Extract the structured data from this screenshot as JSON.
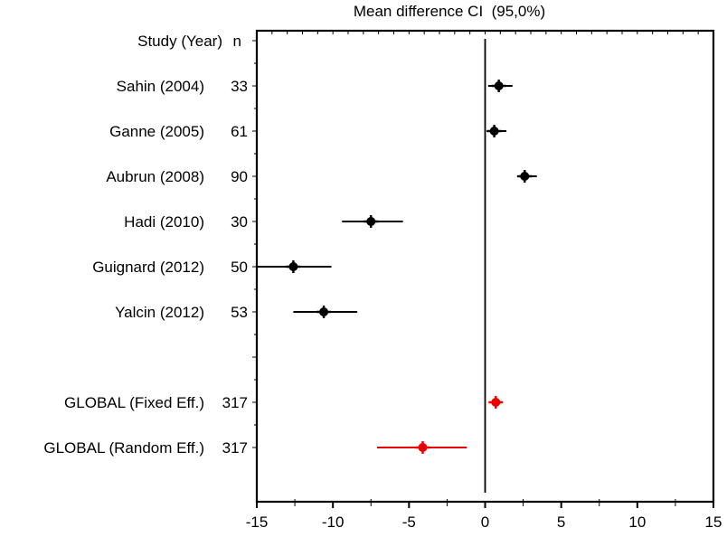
{
  "chart_data": {
    "type": "scatter",
    "subtype": "forest-plot",
    "title": "Mean difference CI  (95,0%)",
    "column_headers": {
      "study": "Study  (Year)",
      "n": "n"
    },
    "xlim": [
      -15,
      15
    ],
    "x_major_ticks": [
      -15,
      -10,
      -5,
      0,
      5,
      10,
      15
    ],
    "x_tick_labels": [
      "-15",
      "-10",
      "-5",
      "0",
      "5",
      "10",
      "15"
    ],
    "x_minor_step": 2.5,
    "reference_line_x": 0,
    "grid": false,
    "legend": false,
    "rows": [
      {
        "label": "Sahin (2004)",
        "n": 33,
        "mean": 0.9,
        "ci_low": 0.2,
        "ci_high": 1.8,
        "group": "study",
        "row_slot": 1
      },
      {
        "label": "Ganne (2005)",
        "n": 61,
        "mean": 0.6,
        "ci_low": 0.1,
        "ci_high": 1.4,
        "group": "study",
        "row_slot": 2
      },
      {
        "label": "Aubrun (2008)",
        "n": 90,
        "mean": 2.6,
        "ci_low": 2.1,
        "ci_high": 3.4,
        "group": "study",
        "row_slot": 3
      },
      {
        "label": "Hadi (2010)",
        "n": 30,
        "mean": -7.5,
        "ci_low": -9.4,
        "ci_high": -5.4,
        "group": "study",
        "row_slot": 4
      },
      {
        "label": "Guignard  (2012)",
        "n": 50,
        "mean": -12.6,
        "ci_low": -15.0,
        "ci_high": -10.1,
        "group": "study",
        "row_slot": 5
      },
      {
        "label": "Yalcin (2012)",
        "n": 53,
        "mean": -10.6,
        "ci_low": -12.6,
        "ci_high": -8.4,
        "group": "study",
        "row_slot": 6
      },
      {
        "label": "GLOBAL (Fixed Eff.)",
        "n": 317,
        "mean": 0.7,
        "ci_low": 0.3,
        "ci_high": 1.1,
        "group": "global",
        "row_slot": 8
      },
      {
        "label": "GLOBAL (Random Eff.)",
        "n": 317,
        "mean": -4.1,
        "ci_low": -7.1,
        "ci_high": -1.2,
        "group": "global",
        "row_slot": 9
      }
    ],
    "colors": {
      "study_marker": "#000000",
      "global_marker": "#ee0000",
      "frame": "#000000",
      "text": "#000000"
    }
  }
}
